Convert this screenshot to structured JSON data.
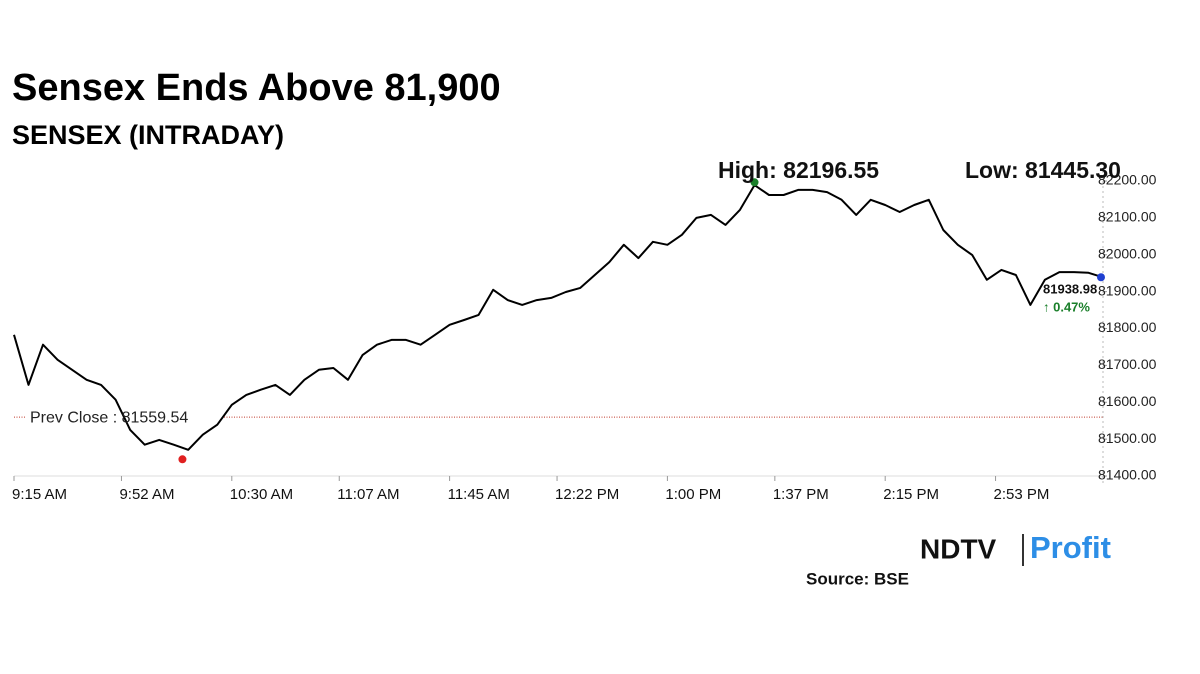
{
  "chart_data": {
    "type": "line",
    "title": "Sensex Ends Above 81,900",
    "subtitle": "SENSEX (INTRADAY)",
    "color": "#000000",
    "x": [
      "9:15 AM",
      "9:20 AM",
      "9:25 AM",
      "9:30 AM",
      "9:35 AM",
      "9:40 AM",
      "9:45 AM",
      "9:50 AM",
      "9:55 AM",
      "10:00 AM",
      "10:05 AM",
      "10:10 AM",
      "10:15 AM",
      "10:20 AM",
      "10:25 AM",
      "10:30 AM",
      "10:35 AM",
      "10:40 AM",
      "10:45 AM",
      "10:50 AM",
      "10:55 AM",
      "11:00 AM",
      "11:05 AM",
      "11:10 AM",
      "11:15 AM",
      "11:20 AM",
      "11:25 AM",
      "11:30 AM",
      "11:35 AM",
      "11:40 AM",
      "11:45 AM",
      "11:50 AM",
      "11:55 AM",
      "12:00 PM",
      "12:05 PM",
      "12:10 PM",
      "12:15 PM",
      "12:20 PM",
      "12:25 PM",
      "12:30 PM",
      "12:35 PM",
      "12:40 PM",
      "12:45 PM",
      "12:50 PM",
      "12:55 PM",
      "1:00 PM",
      "1:05 PM",
      "1:10 PM",
      "1:15 PM",
      "1:20 PM",
      "1:25 PM",
      "1:30 PM",
      "1:35 PM",
      "1:40 PM",
      "1:45 PM",
      "1:50 PM",
      "1:55 PM",
      "2:00 PM",
      "2:05 PM",
      "2:10 PM",
      "2:15 PM",
      "2:20 PM",
      "2:25 PM",
      "2:30 PM",
      "2:35 PM",
      "2:40 PM",
      "2:45 PM",
      "2:50 PM",
      "2:55 PM",
      "3:00 PM",
      "3:05 PM",
      "3:10 PM",
      "3:15 PM",
      "3:20 PM",
      "3:25 PM",
      "3:30 PM"
    ],
    "values": [
      81783,
      81647,
      81756,
      81715,
      81688,
      81661,
      81647,
      81607,
      81525,
      81485,
      81498,
      81485,
      81471,
      81512,
      81539,
      81593,
      81620,
      81634,
      81647,
      81620,
      81661,
      81688,
      81693,
      81661,
      81728,
      81756,
      81769,
      81769,
      81756,
      81783,
      81810,
      81823,
      81837,
      81905,
      81877,
      81864,
      81877,
      81883,
      81899,
      81910,
      81945,
      81980,
      82027,
      81991,
      82035,
      82027,
      82054,
      82100,
      82108,
      82081,
      82122,
      82189,
      82162,
      82162,
      82176,
      82176,
      82170,
      82149,
      82108,
      82149,
      82135,
      82116,
      82135,
      82149,
      82067,
      82027,
      81999,
      81932,
      81959,
      81945,
      81864,
      81932,
      81953,
      81953,
      81951,
      81938.98
    ],
    "xlim": [
      "9:15 AM",
      "3:30 PM"
    ],
    "xticks": [
      "9:15 AM",
      "9:52 AM",
      "10:30 AM",
      "11:07 AM",
      "11:45 AM",
      "12:22 PM",
      "1:00 PM",
      "1:37 PM",
      "2:15 PM",
      "2:53 PM"
    ],
    "ylim": [
      81400,
      82200
    ],
    "yticks": [
      {
        "value": 81400,
        "label": "81400.00"
      },
      {
        "value": 81500,
        "label": "81500.00"
      },
      {
        "value": 81600,
        "label": "81600.00"
      },
      {
        "value": 81700,
        "label": "81700.00"
      },
      {
        "value": 81800,
        "label": "81800.00"
      },
      {
        "value": 81900,
        "label": "81900.00"
      },
      {
        "value": 82000,
        "label": "82000.00"
      },
      {
        "value": 82100,
        "label": "82100.00"
      },
      {
        "value": 82200,
        "label": "82200.00"
      }
    ],
    "high": {
      "value": 82196.55,
      "x": "1:30 PM",
      "label": "High: 82196.55",
      "color": "#1a7f2a"
    },
    "low": {
      "value": 81445.3,
      "x": "10:13 AM",
      "label": "Low: 81445.30",
      "color": "#e02020"
    },
    "prev_close": {
      "value": 81559.54,
      "label": "Prev Close : 81559.54",
      "color": "#c0392b"
    },
    "last": {
      "value": 81938.98,
      "label": "81938.98",
      "change_label": "↑ 0.47%",
      "color": "#1f3fd0"
    },
    "logo": {
      "left": "NDTV",
      "right": "Profit"
    },
    "source": "Source: BSE"
  }
}
